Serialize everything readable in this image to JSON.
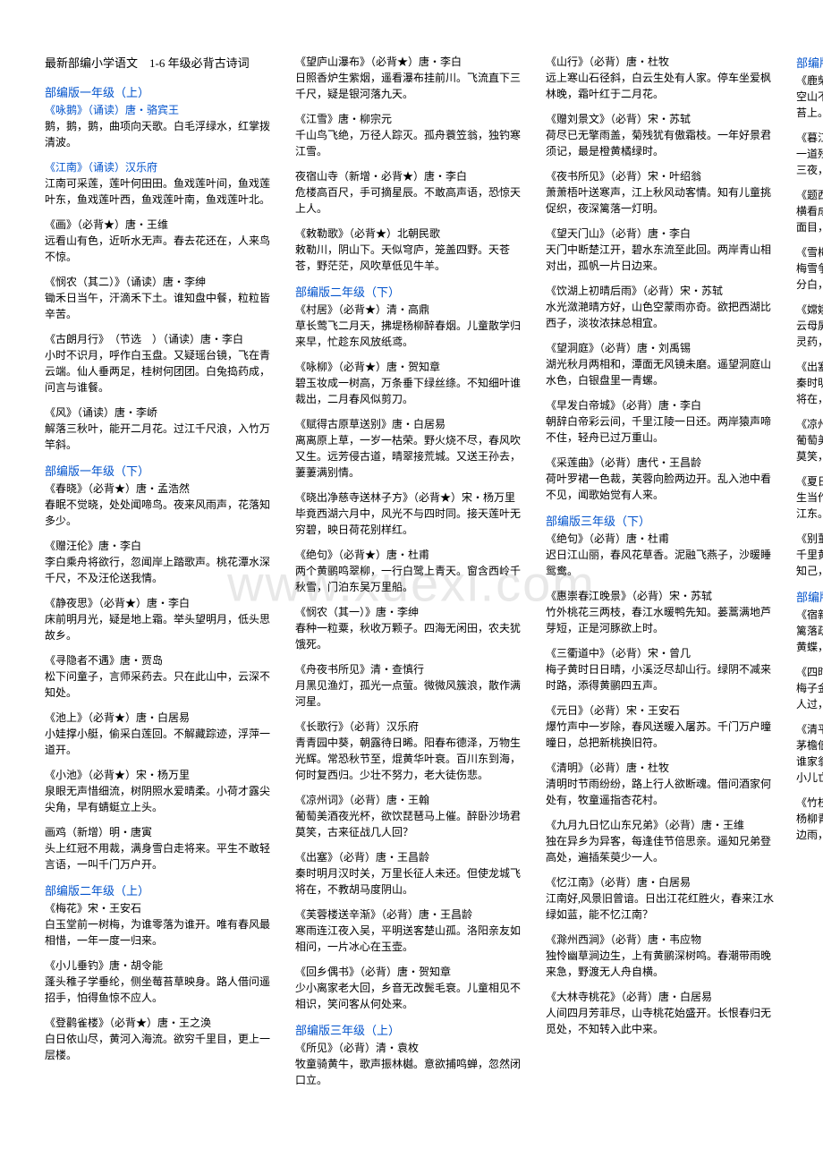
{
  "watermark": "www.xuexi.com",
  "main_title": "最新部编小学语文　1-6 年级必背古诗词",
  "sections": [
    {
      "header": "部编版一年级（上）",
      "poems": [
        {
          "title": "《咏鹅》（诵读）唐・骆宾王",
          "title_blue": true,
          "body": "鹅，鹅，鹅，曲项向天歌。白毛浮绿水，红掌拨清波。"
        },
        {
          "title": "《江南》（诵读）汉乐府",
          "title_blue": true,
          "body": "江南可采莲，莲叶何田田。鱼戏莲叶间，鱼戏莲叶东，鱼戏莲叶西，鱼戏莲叶南，鱼戏莲叶北。"
        },
        {
          "title": "《画》（必背★）唐・王维",
          "body": "远看山有色，近听水无声。春去花还在，人来鸟不惊。"
        },
        {
          "title": "《悯农（其二）》（诵读）唐・李绅",
          "body": "锄禾日当午，汗滴禾下土。谁知盘中餐，粒粒皆辛苦。"
        },
        {
          "title": "《古朗月行》　（节选　）（诵读）唐・李白",
          "body": "小时不识月，呼作白玉盘。又疑瑶台镜，飞在青云端。仙人垂两足，桂树何团团。白兔捣药成，问言与谁餐。"
        },
        {
          "title": "《风》（诵读）唐・李峤",
          "body": "解落三秋叶，能开二月花。过江千尺浪，入竹万竿斜。"
        }
      ]
    },
    {
      "header": "部编版一年级（下）",
      "poems": [
        {
          "title": "《春晓》（必背★）唐・孟浩然",
          "body": "春眠不觉晓，处处闻啼鸟。夜来风雨声，花落知多少。"
        },
        {
          "title": "《赠汪伦》唐・李白",
          "body": "李白乘舟将欲行，忽闻岸上踏歌声。桃花潭水深千尺，不及汪伦送我情。"
        },
        {
          "title": "《静夜思》（必背★）唐・李白",
          "body": "床前明月光，疑是地上霜。举头望明月，低头思故乡。"
        },
        {
          "title": "《寻隐者不遇》唐・贾岛",
          "body": "松下问童子，言师采药去。只在此山中，云深不知处。"
        },
        {
          "title": "《池上》（必背★）唐・白居易",
          "body": "小娃撑小艇，偷采白莲回。不解藏踪迹，浮萍一道开。"
        },
        {
          "title": "《小池》（必背★）宋・杨万里",
          "body": "泉眼无声惜细流，树阴照水爱晴柔。小荷才露尖尖角，早有蜻蜓立上头。"
        },
        {
          "title": "画鸡（新增）明・唐寅",
          "body": "头上红冠不用裁，满身雪白走将来。平生不敢轻言语，一叫千门万户开。"
        }
      ]
    },
    {
      "header": "部编版二年级（上）",
      "poems": [
        {
          "title": "《梅花》宋・王安石",
          "body": "白玉堂前一树梅，为谁零落为谁开。唯有春风最相惜，一年一度一归来。"
        },
        {
          "title": "《小儿垂钓》唐・胡令能",
          "body": "蓬头稚子学垂纶，侧坐莓苔草映身。路人借问遥招手，怕得鱼惊不应人。"
        },
        {
          "title": "《登鹳雀楼》（必背★）唐・王之涣",
          "body": "白日依山尽，黄河入海流。欲穷千里目，更上一层楼。"
        },
        {
          "title": "《望庐山瀑布》（必背★）唐・李白",
          "body": "日照香炉生紫烟，遥看瀑布挂前川。飞流直下三千尺，疑是银河落九天。"
        },
        {
          "title": "《江雪》唐・柳宗元",
          "body": "千山鸟飞绝，万径人踪灭。孤舟蓑笠翁，独钓寒江雪。"
        },
        {
          "title": "夜宿山寺（新增・必背★）唐・李白",
          "body": "危楼高百尺，手可摘星辰。不敢高声语，恐惊天上人。"
        },
        {
          "title": "《敕勒歌》（必背★）北朝民歌",
          "body": "敕勒川，阴山下。天似穹庐，笼盖四野。天苍苍，野茫茫，风吹草低见牛羊。"
        }
      ]
    },
    {
      "header": "部编版二年级（下）",
      "poems": [
        {
          "title": "《村居》（必背★）清・高鼎",
          "body": "草长莺飞二月天，拂堤杨柳醉春烟。儿童散学归来早，忙趁东风放纸鸢。"
        },
        {
          "title": "《咏柳》（必背★）唐・贺知章",
          "body": "碧玉妆成一树高，万条垂下绿丝绦。不知细叶谁裁出，二月春风似剪刀。"
        },
        {
          "title": "《赋得古原草送别》唐・白居易",
          "body": "离离原上草，一岁一枯荣。野火烧不尽，春风吹又生。远芳侵古道，晴翠接荒城。又送王孙去，萋萋满别情。"
        },
        {
          "title": "《晓出净慈寺送林子方》（必背★）宋・杨万里",
          "body": "毕竟西湖六月中，风光不与四时同。接天莲叶无穷碧，映日荷花别样红。"
        },
        {
          "title": "《绝句》（必背★）唐・杜甫",
          "body": "两个黄鹂鸣翠柳，一行白鹭上青天。窗含西岭千秋雪，门泊东吴万里船。"
        },
        {
          "title": "《悯农（其一）》唐・李绅",
          "body": "春种一粒粟，秋收万颗子。四海无闲田，农夫犹饿死。"
        },
        {
          "title": "《舟夜书所见》清・查慎行",
          "body": "月黑见渔灯，孤光一点萤。微微风簇浪，散作满河星。"
        },
        {
          "title": "《长歌行》（必背）汉乐府",
          "body": "青青园中葵，朝露待日晞。阳春布德泽，万物生光辉。常恐秋节至，焜黄华叶衰。百川东到海，何时复西归。少壮不努力，老大徒伤悲。"
        },
        {
          "title": "《凉州词》（必背）唐・王翰",
          "body": "葡萄美酒夜光杯，欲饮琵琶马上催。醉卧沙场君莫笑，古来征战几人回？"
        },
        {
          "title": "《出塞》（必背）唐・王昌龄",
          "body": "秦时明月汉时关，万里长征人未还。但使龙城飞将在，不教胡马度阴山。"
        },
        {
          "title": "《芙蓉楼送辛渐》（必背）唐・王昌龄",
          "body": "寒雨连江夜入吴，平明送客楚山孤。洛阳亲友如相问，一片冰心在玉壶。"
        },
        {
          "title": "《回乡偶书》（必背）唐・贺知章",
          "body": "少小离家老大回，乡音无改鬓毛衰。儿童相见不相识，笑问客从何处来。"
        }
      ]
    },
    {
      "header": "部编版三年级（上）",
      "poems": [
        {
          "title": "《所见》（必背）清・袁枚",
          "body": "牧童骑黄牛，歌声振林樾。意欲捕鸣蝉，忽然闭口立。"
        },
        {
          "title": "《山行》（必背）唐・杜牧",
          "body": "远上寒山石径斜，白云生处有人家。停车坐爱枫林晚，霜叶红于二月花。"
        },
        {
          "title": "《赠刘景文》（必背）宋・苏轼",
          "body": "荷尽已无擎雨盖，菊残犹有傲霜枝。一年好景君须记，最是橙黄橘绿时。"
        },
        {
          "title": "《夜书所见》（必背）宋・叶绍翁",
          "body": "萧萧梧叶送寒声，江上秋风动客情。知有儿童挑促织，夜深篱落一灯明。"
        },
        {
          "title": "《望天门山》（必背）唐・李白",
          "body": "天门中断楚江开，碧水东流至此回。两岸青山相对出，孤帆一片日边来。"
        },
        {
          "title": "《饮湖上初晴后雨》（必背）宋・苏轼",
          "body": "水光潋滟晴方好，山色空蒙雨亦奇。欲把西湖比西子，淡妆浓抹总相宜。"
        },
        {
          "title": "《望洞庭》（必背）唐・刘禹锡",
          "body": "湖光秋月两相和，潭面无风镜未磨。遥望洞庭山水色，白银盘里一青螺。"
        },
        {
          "title": "《早发白帝城》（必背）唐・李白",
          "body": "朝辞白帝彩云间，千里江陵一日还。两岸猿声啼不住，轻舟已过万重山。"
        },
        {
          "title": "《采莲曲》（必背）唐代・王昌龄",
          "body": "荷叶罗裙一色裁，芙蓉向脸两边开。乱入池中看不见，闻歌始觉有人来。"
        }
      ]
    },
    {
      "header": "部编版三年级（下）",
      "poems": [
        {
          "title": "《绝句》（必背）唐・杜甫",
          "body": "迟日江山丽，春风花草香。泥融飞燕子，沙暖睡鸳鸯。"
        },
        {
          "title": "《惠崇春江晚景》（必背）宋・苏轼",
          "body": "竹外桃花三两枝，春江水暖鸭先知。蒌蒿满地芦芽短，正是河豚欲上时。"
        },
        {
          "title": "《三衢道中》（必背）宋・曾几",
          "body": "梅子黄时日日晴，小溪泛尽却山行。绿阴不减来时路，添得黄鹂四五声。"
        },
        {
          "title": "《元日》（必背）宋・王安石",
          "body": "爆竹声中一岁除，春风送暖入屠苏。千门万户曈曈日，总把新桃换旧符。"
        },
        {
          "title": "《清明》（必背）唐・杜牧",
          "body": "清明时节雨纷纷，路上行人欲断魂。借问酒家何处有，牧童遥指杏花村。"
        },
        {
          "title": "《九月九日忆山东兄弟》（必背）唐・王维",
          "body": "独在异乡为异客，每逢佳节倍思亲。遥知兄弟登高处，遍插茱萸少一人。"
        },
        {
          "title": "《忆江南》（必背）唐・白居易",
          "body": "江南好,风景旧曾谙。日出江花红胜火，春来江水绿如蓝，能不忆江南？"
        },
        {
          "title": "《滁州西涧》（必背）唐・韦应物",
          "body": "独怜幽草涧边生，上有黄鹂深树鸣。春潮带雨晚来急，野渡无人舟自横。"
        },
        {
          "title": "《大林寺桃花》（必背）唐・白居易",
          "body": "人间四月芳菲尽，山寺桃花始盛开。长恨春归无觅处，不知转入此中来。"
        }
      ]
    },
    {
      "header": "部编版四年级（上）",
      "poems": [
        {
          "title": "《鹿柴》（必背）唐・王维",
          "body": "空山不见人，但闻人语响。返景入深林，复照青苔上。"
        },
        {
          "title": "《暮江吟》（必背）唐・白居易",
          "body": "一道残阳铺水中，半江瑟瑟半江红。可怜九月初三夜，露似真珠月似弓。"
        },
        {
          "title": "《题西林壁》（必背）宋・苏轼",
          "body": "横看成岭侧成峰，远近高低各不同。不识庐山真面目，只缘身在此山中。"
        },
        {
          "title": "《雪梅》（必背）宋・卢梅坡",
          "body": "梅雪争春未肯降，骚人阁笔费评章。梅须逊雪三分白，雪却输梅一段香。"
        },
        {
          "title": "《嫦娥》（必背）唐・李商隐",
          "body": "云母屏风烛影深，长河渐落晓星沉。嫦娥应悔偷灵药，碧海青天夜夜心。"
        },
        {
          "title": "《出塞》（必背）唐・王昌龄",
          "body": "秦时明月汉时关，万里长征人未还。但使龙城飞将在，不教胡马度阴山。"
        },
        {
          "title": "《凉州词》（必背）唐・王翰",
          "body": "葡萄美酒夜光杯，欲饮琵琶马上催。醉卧沙场君莫笑，古来征战几人回？"
        },
        {
          "title": "《夏日绝句》（必背）宋・李清照",
          "body": "生当作人杰，死亦为鬼雄。至今思项羽，不肯过江东。"
        },
        {
          "title": "《别董大》（必背）唐・高适",
          "body": "千里黄云白日曛，北风吹雁雪纷纷。莫愁前路无知己，天下谁人不识君？"
        }
      ]
    },
    {
      "header": "部编版四年级（下）",
      "poems": [
        {
          "title": "《宿新市徐公店》（必背）宋・杨万里",
          "body": "篱落疏疏一径深，树头花落未成阴。儿童急走追黄蝶，飞入菜花无处寻。"
        },
        {
          "title": "《四时田园杂兴（其二）》（必背）宋・范成大",
          "body": "梅子金黄杏子肥，麦花雪白菜花稀。日长篱落无人过，唯有蜻蜓蛱蝶飞。"
        },
        {
          "title": "《清平乐・村居》（必背）宋・　辛弃疾",
          "body": "茅檐低小，溪上青青草。醉里吴音相媚好，白发谁家翁媪？大儿锄豆溪东，中儿正织鸡笼。最喜小儿亡赖，溪头卧剥莲蓬。"
        },
        {
          "title": "《竹枝词》（必背）唐・　刘禹锡",
          "body": "杨柳青青江水平，闻郎江上踏歌声。东边日出西边雨，道是无晴却有晴。"
        }
      ]
    }
  ]
}
